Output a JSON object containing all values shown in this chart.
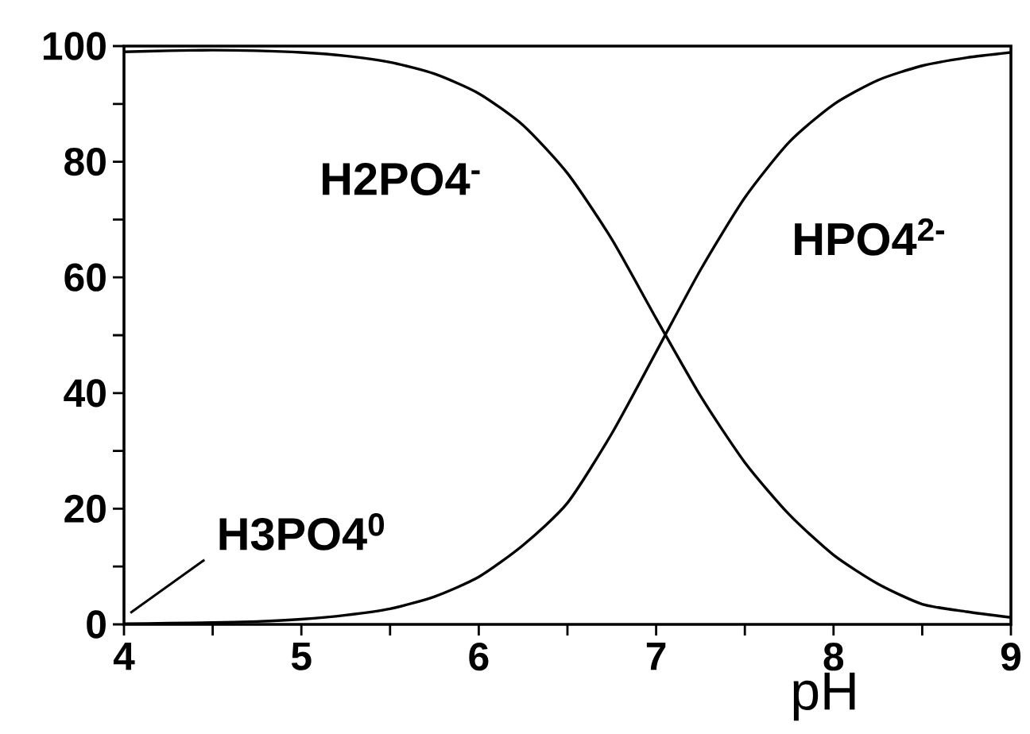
{
  "chart_data": {
    "type": "line",
    "xlabel": "pH",
    "x": [
      4,
      4.25,
      4.5,
      4.75,
      5,
      5.25,
      5.5,
      5.75,
      6,
      6.25,
      6.5,
      6.75,
      7,
      7.25,
      7.5,
      7.75,
      8,
      8.25,
      8.5,
      8.75,
      9
    ],
    "series": [
      {
        "name": "H2PO4$^{-}$",
        "color": "#000000",
        "values": [
          99,
          99.2,
          99.3,
          99.2,
          98.9,
          98.3,
          97.2,
          95.2,
          91.8,
          86.3,
          78,
          66.6,
          52.9,
          39.5,
          28,
          19,
          12,
          7,
          3.5,
          2.2,
          1.2
        ]
      },
      {
        "name": "HPO4$^{2-}$",
        "color": "#000000",
        "values": [
          0.1,
          0.2,
          0.3,
          0.5,
          0.9,
          1.6,
          2.7,
          4.8,
          8.2,
          13.7,
          21,
          33,
          47.1,
          61.3,
          73.8,
          83.4,
          89.9,
          94.1,
          96.6,
          98,
          98.9
        ]
      }
    ],
    "annotations": [
      {
        "text": "H3PO4$^{0}$",
        "x": 4,
        "y": 1.2
      }
    ],
    "xlim": [
      4,
      9
    ],
    "ylim": [
      0,
      100
    ],
    "xticks": [
      4,
      {
        "value": 4.5,
        "label": null
      },
      5,
      {
        "value": 5.5,
        "label": null
      },
      6,
      {
        "value": 6.5,
        "label": null
      },
      7,
      {
        "value": 7.5,
        "label": null
      },
      8,
      {
        "value": 8.5,
        "label": null
      },
      9
    ],
    "yticks": [
      0,
      {
        "value": 10,
        "label": null
      },
      20,
      {
        "value": 30,
        "label": null
      },
      40,
      {
        "value": 50,
        "label": null
      },
      60,
      {
        "value": 70,
        "label": null
      },
      80,
      {
        "value": 90,
        "label": null
      },
      100
    ],
    "marker": "none",
    "line_style": "solid"
  }
}
